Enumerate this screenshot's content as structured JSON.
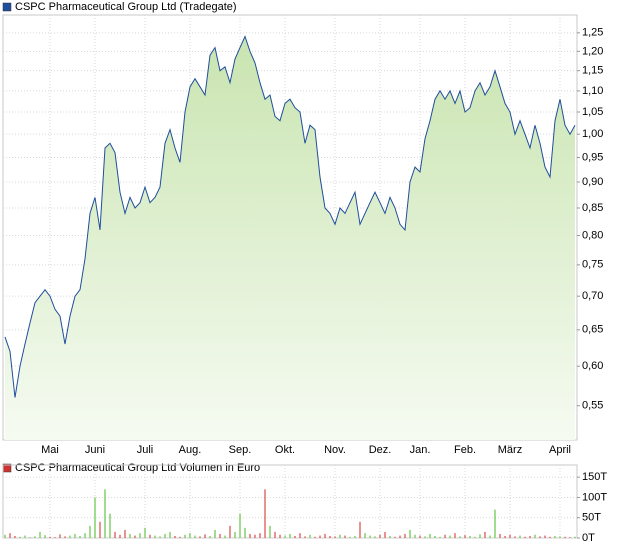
{
  "chart_data": [
    {
      "type": "line",
      "title": "CSPC Pharmaceutical Group Ltd (Tradegate)",
      "color": "#1f4e9c",
      "log": true,
      "grid": true,
      "values": [
        0.64,
        0.62,
        0.56,
        0.6,
        0.63,
        0.66,
        0.69,
        0.7,
        0.71,
        0.7,
        0.68,
        0.67,
        0.63,
        0.67,
        0.7,
        0.71,
        0.76,
        0.84,
        0.87,
        0.81,
        0.97,
        0.98,
        0.96,
        0.88,
        0.84,
        0.87,
        0.85,
        0.86,
        0.89,
        0.86,
        0.87,
        0.89,
        0.98,
        1.01,
        0.97,
        0.94,
        1.05,
        1.11,
        1.13,
        1.11,
        1.09,
        1.19,
        1.21,
        1.15,
        1.16,
        1.12,
        1.18,
        1.21,
        1.24,
        1.2,
        1.17,
        1.12,
        1.08,
        1.09,
        1.04,
        1.03,
        1.07,
        1.08,
        1.06,
        1.05,
        0.98,
        1.02,
        1.01,
        0.91,
        0.85,
        0.84,
        0.82,
        0.85,
        0.84,
        0.86,
        0.88,
        0.82,
        0.84,
        0.86,
        0.88,
        0.86,
        0.84,
        0.87,
        0.85,
        0.82,
        0.81,
        0.9,
        0.93,
        0.92,
        0.99,
        1.03,
        1.08,
        1.1,
        1.08,
        1.1,
        1.07,
        1.1,
        1.05,
        1.06,
        1.1,
        1.12,
        1.09,
        1.11,
        1.15,
        1.11,
        1.07,
        1.05,
        1.0,
        1.03,
        1.0,
        0.97,
        1.02,
        0.98,
        0.93,
        0.91,
        1.03,
        1.08,
        1.02,
        1.0,
        1.02
      ],
      "xlim": [
        0,
        114
      ],
      "xticks": [
        {
          "value": 9,
          "label": "Mai"
        },
        {
          "value": 18,
          "label": "Juni"
        },
        {
          "value": 28,
          "label": "Juli"
        },
        {
          "value": 37,
          "label": "Aug."
        },
        {
          "value": 47,
          "label": "Sep."
        },
        {
          "value": 56,
          "label": "Okt."
        },
        {
          "value": 66,
          "label": "Nov."
        },
        {
          "value": 75,
          "label": "Dez."
        },
        {
          "value": 83,
          "label": "Jan."
        },
        {
          "value": 92,
          "label": "Feb."
        },
        {
          "value": 101,
          "label": "März"
        },
        {
          "value": 111,
          "label": "April"
        }
      ],
      "ylim": [
        0.51,
        1.3
      ],
      "yticks": [
        {
          "value": 0.55,
          "label": "0,55"
        },
        {
          "value": 0.6,
          "label": "0,60"
        },
        {
          "value": 0.65,
          "label": "0,65"
        },
        {
          "value": 0.7,
          "label": "0,70"
        },
        {
          "value": 0.75,
          "label": "0,75"
        },
        {
          "value": 0.8,
          "label": "0,80"
        },
        {
          "value": 0.85,
          "label": "0,85"
        },
        {
          "value": 0.9,
          "label": "0,90"
        },
        {
          "value": 0.95,
          "label": "0,95"
        },
        {
          "value": 1.0,
          "label": "1,00"
        },
        {
          "value": 1.05,
          "label": "1,05"
        },
        {
          "value": 1.1,
          "label": "1,10"
        },
        {
          "value": 1.15,
          "label": "1,15"
        },
        {
          "value": 1.2,
          "label": "1,20"
        },
        {
          "value": 1.25,
          "label": "1,25"
        }
      ]
    },
    {
      "type": "bar",
      "title": "CSPC Pharmaceutical Group Ltd Volumen in Euro",
      "color": "#cc3333",
      "up_color": "#66c447",
      "down_color": "#d94a4a",
      "values": [
        8000,
        12000,
        5000,
        3000,
        6000,
        2000,
        4000,
        15000,
        7000,
        3000,
        2000,
        9000,
        4000,
        6000,
        10000,
        5000,
        12000,
        30000,
        100000,
        40000,
        120000,
        60000,
        15000,
        8000,
        20000,
        10000,
        6000,
        12000,
        25000,
        8000,
        6000,
        4000,
        10000,
        15000,
        5000,
        3000,
        8000,
        12000,
        6000,
        4000,
        9000,
        5000,
        20000,
        10000,
        6000,
        30000,
        15000,
        60000,
        25000,
        10000,
        8000,
        12000,
        120000,
        30000,
        15000,
        8000,
        6000,
        10000,
        5000,
        12000,
        4000,
        8000,
        3000,
        6000,
        10000,
        5000,
        4000,
        8000,
        6000,
        3000,
        5000,
        40000,
        12000,
        6000,
        4000,
        8000,
        15000,
        5000,
        3000,
        6000,
        10000,
        20000,
        8000,
        6000,
        4000,
        10000,
        5000,
        3000,
        8000,
        6000,
        12000,
        4000,
        7000,
        5000,
        3000,
        9000,
        15000,
        6000,
        70000,
        10000,
        5000,
        8000,
        4000,
        6000,
        3000,
        5000,
        8000,
        4000,
        6000,
        3000,
        5000,
        4000,
        3000,
        2000,
        3000
      ],
      "ylim": [
        0,
        180000
      ],
      "yticks": [
        {
          "value": 0,
          "label": "0T"
        },
        {
          "value": 50000,
          "label": "50T"
        },
        {
          "value": 100000,
          "label": "100T"
        },
        {
          "value": 150000,
          "label": "150T"
        }
      ]
    }
  ]
}
